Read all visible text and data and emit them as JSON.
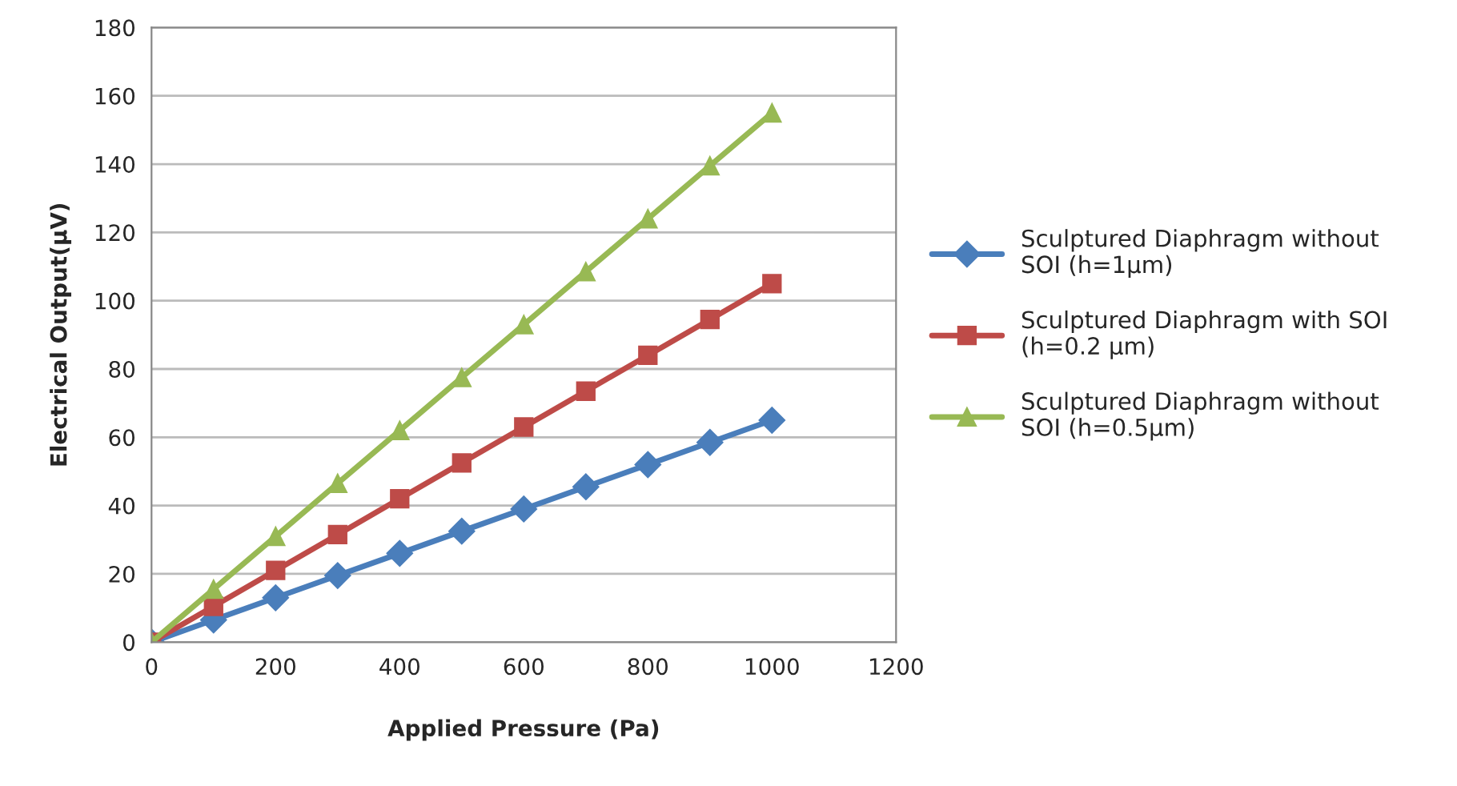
{
  "chart_data": {
    "type": "line",
    "xlabel": "Applied Pressure (Pa)",
    "ylabel": "Electrical Output(μV)",
    "x": [
      0,
      100,
      200,
      300,
      400,
      500,
      600,
      700,
      800,
      900,
      1000
    ],
    "series": [
      {
        "name": "Sculptured Diaphragm without\nSOI (h=1μm)",
        "color": "#4a7ebb",
        "marker": "diamond",
        "values": [
          0,
          6.5,
          13,
          19.5,
          26,
          32.5,
          39,
          45.5,
          52,
          58.5,
          65
        ]
      },
      {
        "name": "Sculptured Diaphragm with SOI\n(h=0.2 μm)",
        "color": "#be4b48",
        "marker": "square",
        "values": [
          0,
          10.5,
          21,
          31.5,
          42,
          52.5,
          63,
          73.5,
          84,
          94.5,
          105
        ]
      },
      {
        "name": "Sculptured Diaphragm without\nSOI (h=0.5μm)",
        "color": "#98b954",
        "marker": "triangle",
        "values": [
          0,
          15.5,
          31,
          46.5,
          62,
          77.5,
          93,
          108.5,
          124,
          139.5,
          155
        ]
      }
    ],
    "xlim": [
      0,
      1200
    ],
    "xticks": [
      0,
      200,
      400,
      600,
      800,
      1000,
      1200
    ],
    "ylim": [
      0,
      180
    ],
    "yticks": [
      0,
      20,
      40,
      60,
      80,
      100,
      120,
      140,
      160,
      180
    ],
    "grid": "y",
    "legend": "right"
  }
}
